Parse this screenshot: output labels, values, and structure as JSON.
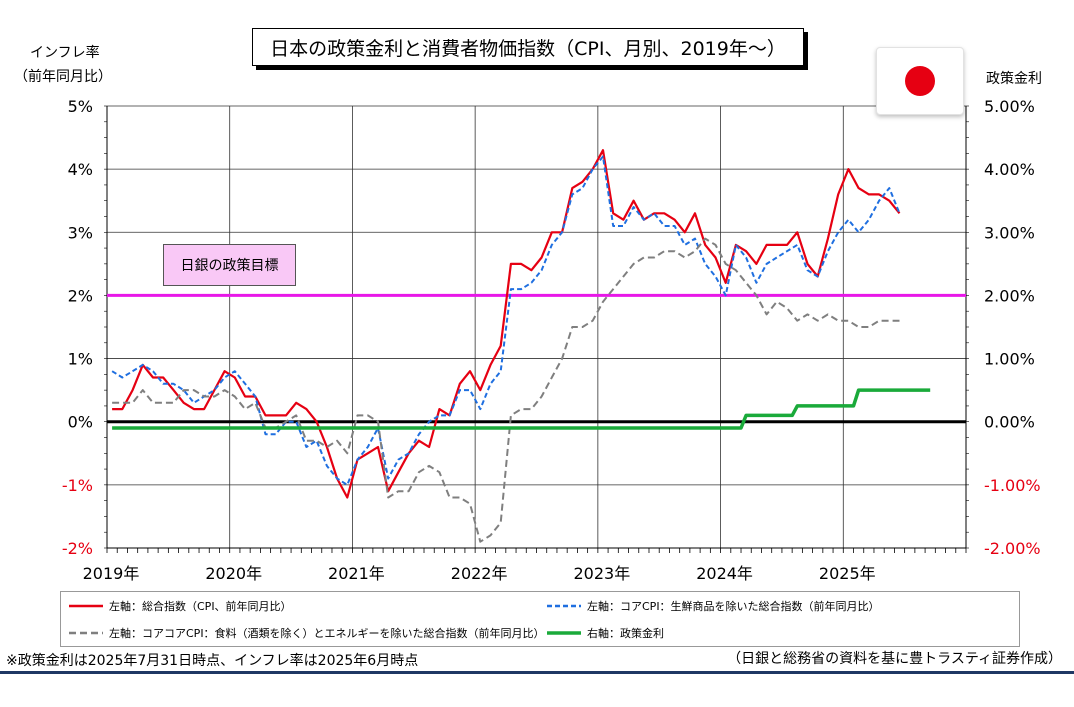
{
  "title": "日本の政策金利と消費者物価指数（CPI、月別、2019年～）",
  "left_axis_title": [
    "インフレ率",
    "（前年同月比）"
  ],
  "right_axis_title": "政策金利",
  "target_label": "日銀の政策目標",
  "legend": [
    {
      "label": "左軸：総合指数（CPI、前年同月比）",
      "color": "#e60012",
      "style": "solid"
    },
    {
      "label": "左軸：コアCPI：生鮮商品を除いた総合指数（前年同月比）",
      "color": "#1f6fe0",
      "style": "dashed"
    },
    {
      "label": "左軸：コアコアCPI：食料（酒類を除く）とエネルギーを除いた総合指数（前年同月比）",
      "color": "#7f7f7f",
      "style": "dashed"
    },
    {
      "label": "右軸：政策金利",
      "color": "#1aaa3a",
      "style": "solid"
    }
  ],
  "footnote": "※政策金利は2025年7月31日時点、インフレ率は2025年6月時点",
  "source": "（日銀と総務省の資料を基に豊トラスティ証券作成）",
  "chart_data": {
    "type": "line",
    "x_start": "2019-01",
    "x_labels": [
      "2019年",
      "2020年",
      "2021年",
      "2022年",
      "2023年",
      "2024年",
      "2025年"
    ],
    "y_left_ticks": [
      "5%",
      "4%",
      "3%",
      "2%",
      "1%",
      "0%",
      "-1%",
      "-2%"
    ],
    "y_right_ticks": [
      "5.00%",
      "4.00%",
      "3.00%",
      "2.00%",
      "1.00%",
      "0.00%",
      "-1.00%",
      "-2.00%"
    ],
    "y_left_range": [
      -2,
      5
    ],
    "y_right_range": [
      -2,
      5
    ],
    "target_line": 2.0,
    "grid": true,
    "colors": {
      "cpi": "#e60012",
      "core": "#1f6fe0",
      "corecore": "#7f7f7f",
      "rate": "#1aaa3a",
      "target": "#e817e8",
      "zero": "#000000",
      "negative_tick": "#e60012"
    },
    "series": [
      {
        "name": "左軸：総合指数（CPI、前年同月比）",
        "axis": "left",
        "values": [
          0.2,
          0.2,
          0.5,
          0.9,
          0.7,
          0.7,
          0.5,
          0.3,
          0.2,
          0.2,
          0.5,
          0.8,
          0.7,
          0.4,
          0.4,
          0.1,
          0.1,
          0.1,
          0.3,
          0.2,
          0.0,
          -0.4,
          -0.9,
          -1.2,
          -0.6,
          -0.5,
          -0.4,
          -1.1,
          -0.8,
          -0.5,
          -0.3,
          -0.4,
          0.2,
          0.1,
          0.6,
          0.8,
          0.5,
          0.9,
          1.2,
          2.5,
          2.5,
          2.4,
          2.6,
          3.0,
          3.0,
          3.7,
          3.8,
          4.0,
          4.3,
          3.3,
          3.2,
          3.5,
          3.2,
          3.3,
          3.3,
          3.2,
          3.0,
          3.3,
          2.8,
          2.6,
          2.2,
          2.8,
          2.7,
          2.5,
          2.8,
          2.8,
          2.8,
          3.0,
          2.5,
          2.3,
          2.9,
          3.6,
          4.0,
          3.7,
          3.6,
          3.6,
          3.5,
          3.3
        ]
      },
      {
        "name": "左軸：コアCPI：生鮮商品を除いた総合指数（前年同月比）",
        "axis": "left",
        "values": [
          0.8,
          0.7,
          0.8,
          0.9,
          0.8,
          0.6,
          0.6,
          0.5,
          0.3,
          0.4,
          0.5,
          0.7,
          0.8,
          0.6,
          0.4,
          -0.2,
          -0.2,
          0.0,
          0.0,
          -0.4,
          -0.3,
          -0.7,
          -0.9,
          -1.0,
          -0.6,
          -0.4,
          -0.1,
          -0.9,
          -0.6,
          -0.5,
          -0.2,
          0.0,
          0.1,
          0.1,
          0.5,
          0.5,
          0.2,
          0.6,
          0.8,
          2.1,
          2.1,
          2.2,
          2.4,
          2.8,
          3.0,
          3.6,
          3.7,
          4.0,
          4.2,
          3.1,
          3.1,
          3.4,
          3.2,
          3.3,
          3.1,
          3.1,
          2.8,
          2.9,
          2.5,
          2.3,
          2.0,
          2.8,
          2.6,
          2.2,
          2.5,
          2.6,
          2.7,
          2.8,
          2.4,
          2.3,
          2.7,
          3.0,
          3.2,
          3.0,
          3.2,
          3.5,
          3.7,
          3.3
        ]
      },
      {
        "name": "左軸：コアコアCPI：食料（酒類を除く）とエネルギーを除いた総合指数（前年同月比）",
        "axis": "left",
        "values": [
          0.3,
          0.3,
          0.3,
          0.5,
          0.3,
          0.3,
          0.3,
          0.5,
          0.5,
          0.4,
          0.4,
          0.5,
          0.4,
          0.2,
          0.3,
          -0.1,
          -0.1,
          0.0,
          0.1,
          -0.3,
          -0.3,
          -0.4,
          -0.3,
          -0.5,
          0.1,
          0.1,
          0.0,
          -1.2,
          -1.1,
          -1.1,
          -0.8,
          -0.7,
          -0.8,
          -1.2,
          -1.2,
          -1.3,
          -1.9,
          -1.8,
          -1.6,
          0.1,
          0.2,
          0.2,
          0.4,
          0.7,
          1.0,
          1.5,
          1.5,
          1.6,
          1.9,
          2.1,
          2.3,
          2.5,
          2.6,
          2.6,
          2.7,
          2.7,
          2.6,
          2.7,
          2.9,
          2.8,
          2.5,
          2.4,
          2.2,
          2.0,
          1.7,
          1.9,
          1.8,
          1.6,
          1.7,
          1.6,
          1.7,
          1.6,
          1.6,
          1.5,
          1.5,
          1.6,
          1.6,
          1.6
        ]
      },
      {
        "name": "右軸：政策金利",
        "axis": "right",
        "values": [
          -0.1,
          -0.1,
          -0.1,
          -0.1,
          -0.1,
          -0.1,
          -0.1,
          -0.1,
          -0.1,
          -0.1,
          -0.1,
          -0.1,
          -0.1,
          -0.1,
          -0.1,
          -0.1,
          -0.1,
          -0.1,
          -0.1,
          -0.1,
          -0.1,
          -0.1,
          -0.1,
          -0.1,
          -0.1,
          -0.1,
          -0.1,
          -0.1,
          -0.1,
          -0.1,
          -0.1,
          -0.1,
          -0.1,
          -0.1,
          -0.1,
          -0.1,
          -0.1,
          -0.1,
          -0.1,
          -0.1,
          -0.1,
          -0.1,
          -0.1,
          -0.1,
          -0.1,
          -0.1,
          -0.1,
          -0.1,
          -0.1,
          -0.1,
          -0.1,
          -0.1,
          -0.1,
          -0.1,
          -0.1,
          -0.1,
          -0.1,
          -0.1,
          -0.1,
          -0.1,
          -0.1,
          -0.1,
          0.1,
          0.1,
          0.1,
          0.1,
          0.1,
          0.25,
          0.25,
          0.25,
          0.25,
          0.25,
          0.25,
          0.5,
          0.5,
          0.5,
          0.5,
          0.5,
          0.5,
          0.5,
          0.5
        ]
      }
    ]
  }
}
